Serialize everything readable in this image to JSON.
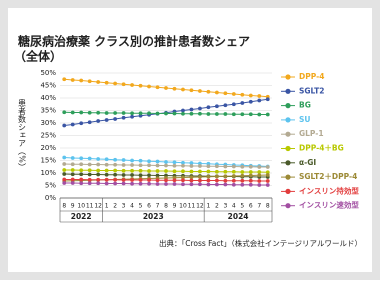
{
  "chart_data": {
    "type": "line",
    "title": "糖尿病治療薬 クラス別の推計患者数シェア",
    "subtitle": "（全体）",
    "y_label": "患者数シェア（%）",
    "source": "出典：「Cross Fact」（株式会社インテージリアルワールド）",
    "categories": [
      "8",
      "9",
      "10",
      "11",
      "12",
      "1",
      "2",
      "3",
      "4",
      "5",
      "6",
      "7",
      "8",
      "9",
      "10",
      "11",
      "12",
      "1",
      "2",
      "3",
      "4",
      "5",
      "6",
      "7",
      "8"
    ],
    "years": [
      "2022",
      "2023",
      "2024"
    ],
    "ylim": [
      0,
      50
    ],
    "yticks": [
      {
        "value": 0,
        "label": "0%"
      },
      {
        "value": 5,
        "label": "5%"
      },
      {
        "value": 10,
        "label": "10%"
      },
      {
        "value": 15,
        "label": "15%"
      },
      {
        "value": 20,
        "label": "20%"
      },
      {
        "value": 25,
        "label": "25%"
      },
      {
        "value": 30,
        "label": "30%"
      },
      {
        "value": 35,
        "label": "35%"
      },
      {
        "value": 40,
        "label": "40%"
      },
      {
        "value": 45,
        "label": "45%"
      },
      {
        "value": 50,
        "label": "50%"
      }
    ],
    "grid": true,
    "legend": "right",
    "series": [
      {
        "name": "DPP-4",
        "color": "#f2a81d",
        "values": [
          47.5,
          47.2,
          47.0,
          46.7,
          46.4,
          46.1,
          45.8,
          45.5,
          45.2,
          44.9,
          44.6,
          44.3,
          44.0,
          43.7,
          43.4,
          43.1,
          42.8,
          42.5,
          42.2,
          41.9,
          41.6,
          41.3,
          41.0,
          40.8,
          40.5
        ]
      },
      {
        "name": "SGLT2",
        "color": "#3a55a4",
        "values": [
          29.0,
          29.4,
          29.9,
          30.3,
          30.8,
          31.2,
          31.6,
          32.1,
          32.5,
          32.9,
          33.3,
          33.7,
          34.1,
          34.6,
          35.0,
          35.4,
          35.8,
          36.3,
          36.7,
          37.1,
          37.5,
          38.0,
          38.5,
          39.0,
          39.5
        ]
      },
      {
        "name": "BG",
        "color": "#2e9e5b",
        "values": [
          34.3,
          34.2,
          34.2,
          34.1,
          34.1,
          34.0,
          34.0,
          34.0,
          33.9,
          33.9,
          33.9,
          33.8,
          33.8,
          33.8,
          33.7,
          33.7,
          33.7,
          33.6,
          33.6,
          33.6,
          33.5,
          33.5,
          33.5,
          33.4,
          33.4
        ]
      },
      {
        "name": "SU",
        "color": "#5cc3ee",
        "values": [
          16.2,
          16.0,
          15.9,
          15.8,
          15.6,
          15.5,
          15.3,
          15.2,
          15.0,
          14.9,
          14.7,
          14.6,
          14.4,
          14.3,
          14.1,
          14.0,
          13.8,
          13.7,
          13.5,
          13.4,
          13.2,
          13.1,
          12.9,
          12.8,
          12.6
        ]
      },
      {
        "name": "GLP-1",
        "color": "#b3aa92",
        "values": [
          13.6,
          13.5,
          13.5,
          13.4,
          13.4,
          13.3,
          13.3,
          13.2,
          13.2,
          13.1,
          13.1,
          13.0,
          13.0,
          12.9,
          12.9,
          12.8,
          12.8,
          12.7,
          12.7,
          12.6,
          12.6,
          12.5,
          12.5,
          12.4,
          12.4
        ]
      },
      {
        "name": "DPP-4＋BG",
        "color": "#b8c800",
        "values": [
          11.2,
          11.2,
          11.1,
          11.1,
          11.0,
          11.0,
          11.0,
          10.9,
          10.9,
          10.9,
          10.8,
          10.8,
          10.8,
          10.7,
          10.7,
          10.6,
          10.6,
          10.6,
          10.5,
          10.5,
          10.5,
          10.4,
          10.4,
          10.4,
          10.3
        ]
      },
      {
        "name": "α-GI",
        "color": "#4a5a2a",
        "values": [
          9.6,
          9.5,
          9.5,
          9.4,
          9.4,
          9.3,
          9.3,
          9.2,
          9.2,
          9.1,
          9.1,
          9.0,
          9.0,
          8.9,
          8.9,
          8.8,
          8.8,
          8.7,
          8.7,
          8.6,
          8.6,
          8.5,
          8.5,
          8.4,
          8.4
        ]
      },
      {
        "name": "SGLT2＋DPP-4",
        "color": "#9c8a36",
        "values": [
          6.8,
          6.9,
          7.0,
          7.1,
          7.2,
          7.3,
          7.4,
          7.5,
          7.6,
          7.7,
          7.8,
          7.9,
          8.0,
          8.1,
          8.2,
          8.3,
          8.4,
          8.5,
          8.6,
          8.7,
          8.8,
          8.9,
          9.0,
          9.1,
          9.2
        ]
      },
      {
        "name": "インスリン持効型",
        "color": "#e23c3c",
        "values": [
          7.4,
          7.4,
          7.4,
          7.3,
          7.3,
          7.3,
          7.3,
          7.2,
          7.2,
          7.2,
          7.2,
          7.1,
          7.1,
          7.1,
          7.1,
          7.0,
          7.0,
          7.0,
          7.0,
          6.9,
          6.9,
          6.9,
          6.9,
          6.8,
          6.8
        ]
      },
      {
        "name": "インスリン速効型",
        "color": "#a24fa2",
        "values": [
          6.0,
          6.0,
          5.9,
          5.9,
          5.9,
          5.8,
          5.8,
          5.8,
          5.7,
          5.7,
          5.7,
          5.6,
          5.6,
          5.6,
          5.5,
          5.5,
          5.5,
          5.4,
          5.4,
          5.4,
          5.3,
          5.3,
          5.3,
          5.2,
          5.2
        ]
      }
    ]
  }
}
